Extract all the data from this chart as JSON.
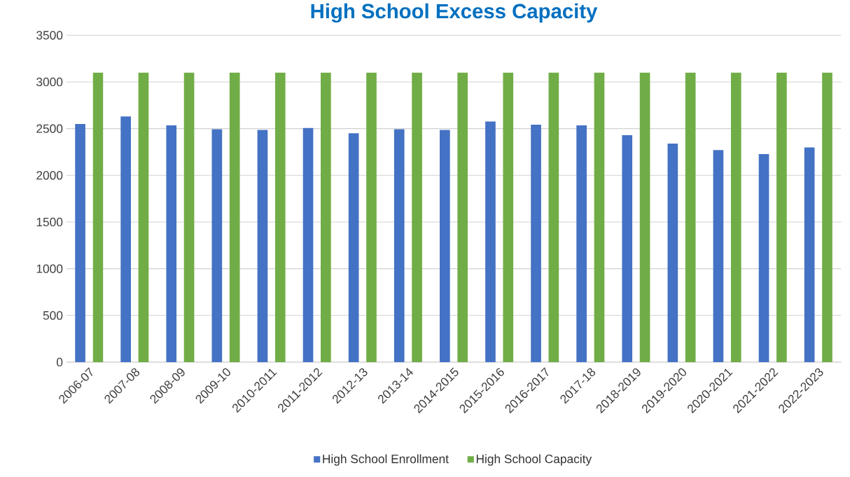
{
  "chart_data": {
    "type": "bar",
    "title": "High School Excess Capacity",
    "categories": [
      "2006-07",
      "2007-08",
      "2008-09",
      "2009-10",
      "2010-2011",
      "2011-2012",
      "2012-13",
      "2013-14",
      "2014-2015",
      "2015-2016",
      "2016-2017",
      "2017-18",
      "2018-2019",
      "2019-2020",
      "2020-2021",
      "2021-2022",
      "2022-2023"
    ],
    "series": [
      {
        "name": "High School Enrollment",
        "color": "#4472c4",
        "values": [
          2550,
          2630,
          2535,
          2493,
          2486,
          2507,
          2450,
          2493,
          2486,
          2577,
          2542,
          2535,
          2430,
          2340,
          2270,
          2228,
          2298
        ]
      },
      {
        "name": "High School Capacity",
        "color": "#70ad47",
        "values": [
          3100,
          3100,
          3100,
          3100,
          3100,
          3100,
          3100,
          3100,
          3100,
          3100,
          3100,
          3100,
          3100,
          3100,
          3100,
          3100,
          3100
        ]
      }
    ],
    "ylim": [
      0,
      3500
    ],
    "yticks": [
      0,
      500,
      1000,
      1500,
      2000,
      2500,
      3000,
      3500
    ],
    "grid": "y",
    "legend": "bottom"
  }
}
